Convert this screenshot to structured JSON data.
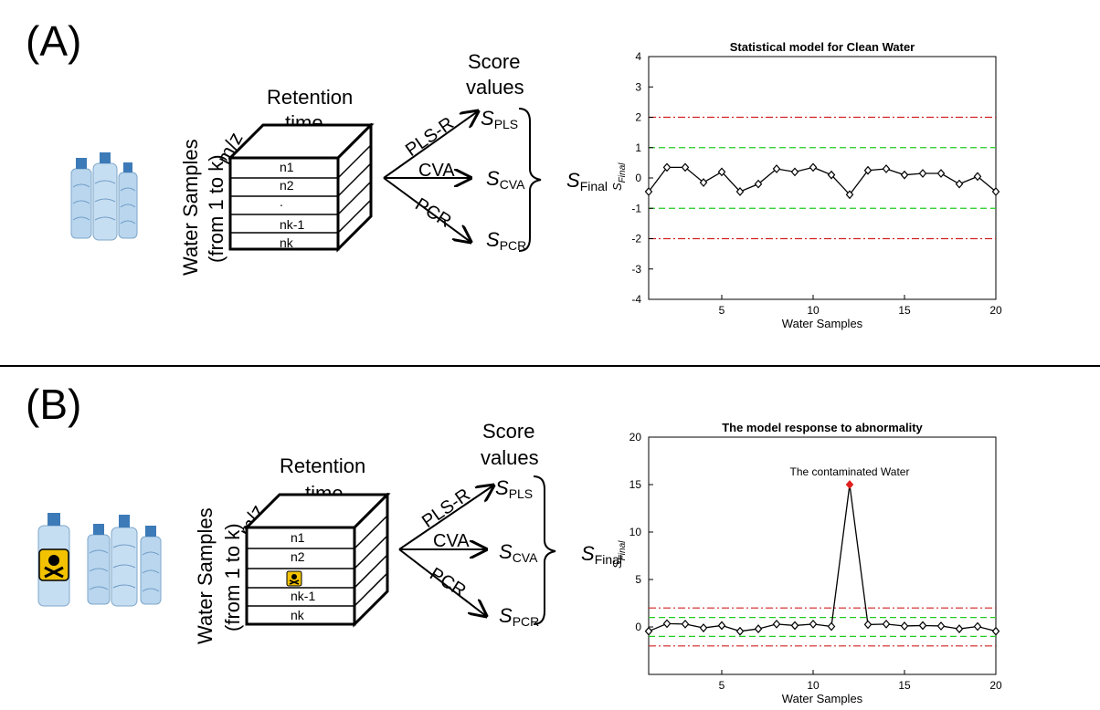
{
  "panels": [
    {
      "label": "(A)",
      "cube": {
        "retention_line1": "Retention",
        "retention_line2": "time",
        "mz": "m/z",
        "samples_line1": "Water Samples",
        "samples_line2": "(from 1 to k)",
        "rows": [
          "n1",
          "n2",
          ".",
          "nk-1",
          "nk"
        ]
      },
      "methods": [
        "PLS-R",
        "CVA",
        "PCR"
      ],
      "score_title_line1": "Score",
      "score_title_line2": "values",
      "scores": {
        "pls": "PLS",
        "cva": "CVA",
        "pcr": "PCR",
        "final": "Final",
        "symbol": "S"
      },
      "chart_data": {
        "type": "line",
        "title": "Statistical model for Clean Water",
        "xlabel": "Water Samples",
        "ylabel": "S_Final",
        "xlim": [
          1,
          20
        ],
        "ylim": [
          -4,
          4
        ],
        "xticks": [
          5,
          10,
          15,
          20
        ],
        "yticks": [
          -4,
          -3,
          -2,
          -1,
          0,
          1,
          2,
          3,
          4
        ],
        "x": [
          1,
          2,
          3,
          4,
          5,
          6,
          7,
          8,
          9,
          10,
          11,
          12,
          13,
          14,
          15,
          16,
          17,
          18,
          19,
          20
        ],
        "values": [
          -0.45,
          0.35,
          0.35,
          -0.15,
          0.2,
          -0.45,
          -0.2,
          0.3,
          0.2,
          0.35,
          0.1,
          -0.55,
          0.25,
          0.3,
          0.1,
          0.15,
          0.15,
          -0.2,
          0.05,
          -0.45
        ],
        "thresholds": [
          {
            "y": 2,
            "color": "#d22020",
            "style": "dashdot"
          },
          {
            "y": -2,
            "color": "#d22020",
            "style": "dashdot"
          },
          {
            "y": 1,
            "color": "#22cc22",
            "style": "dashed"
          },
          {
            "y": -1,
            "color": "#22cc22",
            "style": "dashed"
          }
        ]
      }
    },
    {
      "label": "(B)",
      "cube": {
        "retention_line1": "Retention",
        "retention_line2": "time",
        "mz": "m/z",
        "samples_line1": "Water Samples",
        "samples_line2": "(from 1 to k)",
        "rows": [
          "n1",
          "n2",
          "",
          "nk-1",
          "nk"
        ]
      },
      "methods": [
        "PLS-R",
        "CVA",
        "PCR"
      ],
      "score_title_line1": "Score",
      "score_title_line2": "values",
      "scores": {
        "pls": "PLS",
        "cva": "CVA",
        "pcr": "PCR",
        "final": "Final",
        "symbol": "S"
      },
      "chart_data": {
        "type": "line",
        "title": "The model response to abnormality",
        "xlabel": "Water Samples",
        "ylabel": "S_Final",
        "xlim": [
          1,
          20
        ],
        "ylim": [
          -5,
          20
        ],
        "xticks": [
          5,
          10,
          15,
          20
        ],
        "yticks": [
          0,
          5,
          10,
          15,
          20
        ],
        "x": [
          1,
          2,
          3,
          4,
          5,
          6,
          7,
          8,
          9,
          10,
          11,
          12,
          13,
          14,
          15,
          16,
          17,
          18,
          19,
          20
        ],
        "values": [
          -0.45,
          0.35,
          0.3,
          -0.1,
          0.15,
          -0.45,
          -0.2,
          0.3,
          0.15,
          0.3,
          0.05,
          15,
          0.25,
          0.3,
          0.1,
          0.15,
          0.1,
          -0.2,
          0.05,
          -0.45
        ],
        "highlight_index": 11,
        "highlight_color": "#e02020",
        "annotation": "The contaminated Water",
        "thresholds": [
          {
            "y": 2,
            "color": "#d22020",
            "style": "dashdot"
          },
          {
            "y": -2,
            "color": "#d22020",
            "style": "dashdot"
          },
          {
            "y": 1,
            "color": "#22cc22",
            "style": "dashed"
          },
          {
            "y": -1,
            "color": "#22cc22",
            "style": "dashed"
          }
        ]
      }
    }
  ],
  "colors": {
    "water": "#b9d6ee",
    "cap": "#3c7ab8",
    "warning": "#f2c200"
  }
}
